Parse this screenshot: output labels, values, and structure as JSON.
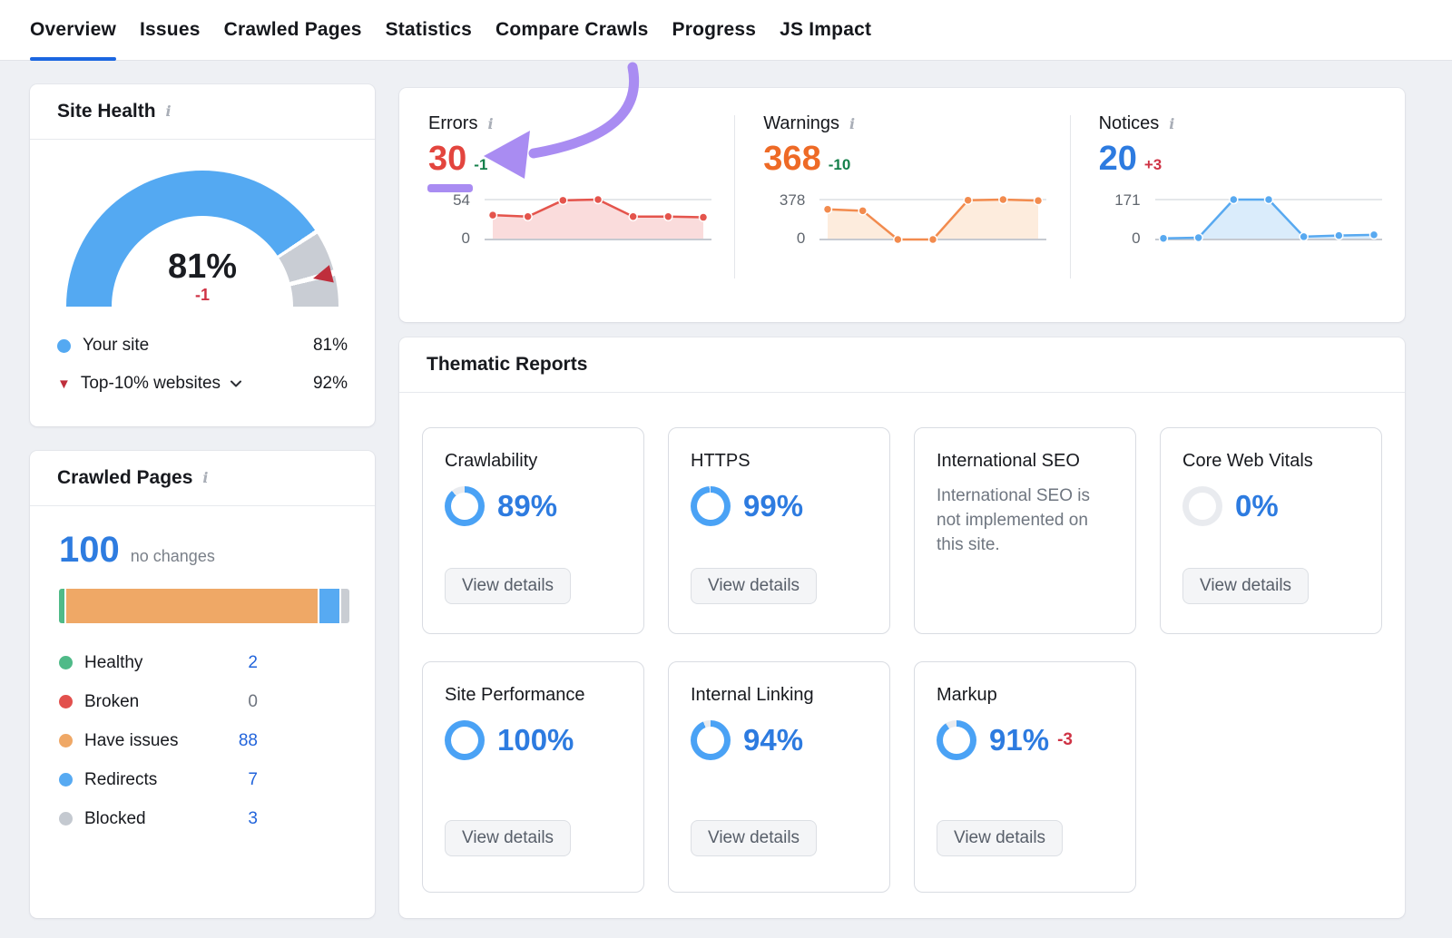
{
  "nav": {
    "tabs": [
      {
        "label": "Overview",
        "active": true
      },
      {
        "label": "Issues",
        "active": false
      },
      {
        "label": "Crawled Pages",
        "active": false
      },
      {
        "label": "Statistics",
        "active": false
      },
      {
        "label": "Compare Crawls",
        "active": false
      },
      {
        "label": "Progress",
        "active": false
      },
      {
        "label": "JS Impact",
        "active": false
      }
    ]
  },
  "site_health": {
    "title": "Site Health",
    "score_label": "81%",
    "score_pct": 81,
    "change": "-1",
    "benchmark_pct": 92,
    "gauge_colors": {
      "fill": "#54a9f2",
      "rest": "#c9cdd4",
      "marker": "#bf2e3c"
    },
    "legend": [
      {
        "label": "Your site",
        "value": "81%",
        "marker_color": "#54a9f2"
      },
      {
        "label": "Top-10% websites",
        "value": "92%",
        "marker_color": "#bf2e3c"
      }
    ]
  },
  "crawled_pages": {
    "title": "Crawled Pages",
    "total": "100",
    "note": "no changes",
    "bar": [
      {
        "key": "healthy",
        "pct": 2,
        "color": "#4fba88"
      },
      {
        "key": "have-issues",
        "pct": 88,
        "color": "#efa866"
      },
      {
        "key": "redirects",
        "pct": 7,
        "color": "#57aaf2"
      },
      {
        "key": "blocked",
        "pct": 3,
        "color": "#c9cdd3"
      }
    ],
    "legend": [
      {
        "label": "Healthy",
        "count": "2",
        "color": "#4fba88",
        "count_color": "#2264db"
      },
      {
        "label": "Broken",
        "count": "0",
        "color": "#e2504d",
        "count_color": "#6e747e"
      },
      {
        "label": "Have issues",
        "count": "88",
        "color": "#efa866",
        "count_color": "#2264db"
      },
      {
        "label": "Redirects",
        "count": "7",
        "color": "#57aaf2",
        "count_color": "#2264db"
      },
      {
        "label": "Blocked",
        "count": "3",
        "color": "#c4c9d0",
        "count_color": "#2264db"
      }
    ]
  },
  "chart_data": [
    {
      "type": "area",
      "title": "Errors sparkline",
      "ylim": [
        0,
        54
      ],
      "values": [
        33,
        31,
        53,
        54,
        31,
        31,
        30
      ]
    },
    {
      "type": "area",
      "title": "Warnings sparkline",
      "ylim": [
        0,
        378
      ],
      "values": [
        286,
        272,
        0,
        0,
        372,
        378,
        368
      ]
    },
    {
      "type": "area",
      "title": "Notices sparkline",
      "ylim": [
        0,
        171
      ],
      "values": [
        5,
        8,
        171,
        171,
        12,
        17,
        20
      ]
    }
  ],
  "metrics": [
    {
      "label": "Errors",
      "value": "30",
      "value_color": "#e3453e",
      "change": "-1",
      "change_color": "#15804b",
      "y_max": "54",
      "y_min": "0",
      "max": 54,
      "points": [
        33,
        31,
        53,
        54,
        31,
        31,
        30
      ],
      "line_color": "#e4544c",
      "fill_color": "#fadcdc"
    },
    {
      "label": "Warnings",
      "value": "368",
      "value_color": "#ee6a26",
      "change": "-10",
      "change_color": "#15804b",
      "y_max": "378",
      "y_min": "0",
      "max": 378,
      "points": [
        286,
        272,
        0,
        0,
        372,
        378,
        368
      ],
      "line_color": "#f28b4e",
      "fill_color": "#fdecdd"
    },
    {
      "label": "Notices",
      "value": "20",
      "value_color": "#2d7be0",
      "change": "+3",
      "change_color": "#cf3345",
      "y_max": "171",
      "y_min": "0",
      "max": 171,
      "points": [
        5,
        8,
        171,
        171,
        12,
        17,
        20
      ],
      "line_color": "#58a9f0",
      "fill_color": "#daecfb"
    }
  ],
  "thematic": {
    "title": "Thematic Reports",
    "button_label": "View details",
    "donut_color": "#4aa2f5",
    "donut_track": "#e9ebef",
    "cards": [
      {
        "title": "Crawlability",
        "percent": 89,
        "percent_label": "89%",
        "has_button": true
      },
      {
        "title": "HTTPS",
        "percent": 99,
        "percent_label": "99%",
        "has_button": true
      },
      {
        "title": "International SEO",
        "message": "International SEO is not implemented on this site.",
        "has_button": false
      },
      {
        "title": "Core Web Vitals",
        "percent": 0,
        "percent_label": "0%",
        "has_button": true
      },
      {
        "title": "Site Performance",
        "percent": 100,
        "percent_label": "100%",
        "has_button": true
      },
      {
        "title": "Internal Linking",
        "percent": 94,
        "percent_label": "94%",
        "has_button": true
      },
      {
        "title": "Markup",
        "percent": 91,
        "percent_label": "91%",
        "change": "-3",
        "change_color": "#cf3345",
        "has_button": true
      }
    ]
  },
  "annotation": {
    "color": "#a98cf2"
  }
}
